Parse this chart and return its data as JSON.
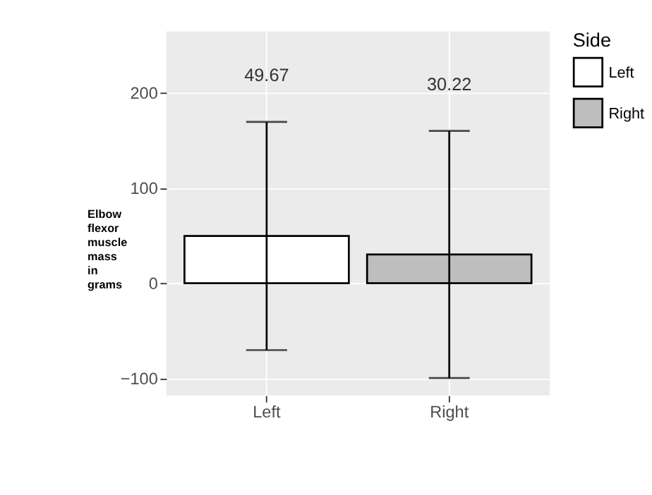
{
  "chart_data": {
    "type": "bar",
    "ylabel": "Elbow flexor muscle mass in grams",
    "legend_title": "Side",
    "categories": [
      "Left",
      "Right"
    ],
    "series": [
      {
        "name": "Left",
        "color": "#ffffff",
        "values": [
          49.67,
          null
        ],
        "errors": [
          120,
          null
        ]
      },
      {
        "name": "Right",
        "color": "#bebebe",
        "values": [
          null,
          30.22
        ],
        "errors": [
          null,
          130
        ]
      }
    ],
    "annotations": [
      "49.67",
      "30.22"
    ],
    "ylim": [
      -118,
      265
    ],
    "yticks": [
      -100,
      0,
      100,
      200
    ],
    "grid": true,
    "legend": "right"
  }
}
